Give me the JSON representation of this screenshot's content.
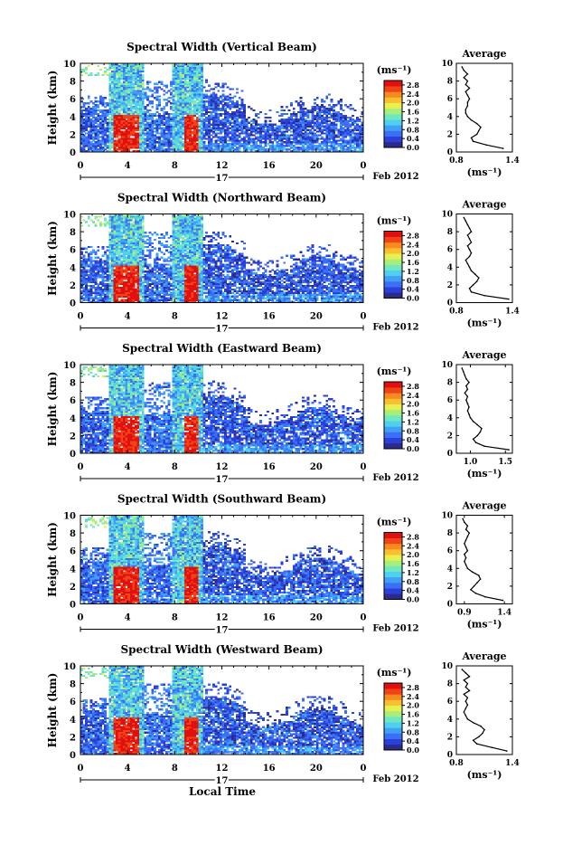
{
  "figure": {
    "date_label": "Feb 2012",
    "day_label": "17",
    "xlabel": "Local Time"
  },
  "colorbar": {
    "unit": "(ms⁻¹)",
    "ticks": [
      "0.0",
      "0.4",
      "0.8",
      "1.2",
      "1.6",
      "2.0",
      "2.4",
      "2.8"
    ],
    "range": [
      0.0,
      3.0
    ],
    "colors": [
      "#2b2b8c",
      "#2b3fd9",
      "#3b6ff5",
      "#3fa0f5",
      "#4fd0f0",
      "#6fe8c0",
      "#a8ee7a",
      "#e8f050",
      "#f8c030",
      "#f88a20",
      "#f04418",
      "#e01010"
    ]
  },
  "chart_data": [
    {
      "type": "heatmap",
      "title": "Spectral Width (Vertical Beam)",
      "ylabel": "Height (km)",
      "xticks": [
        "0",
        "4",
        "8",
        "12",
        "16",
        "20",
        "0"
      ],
      "xlim": [
        0,
        24
      ],
      "yticks": [
        "0",
        "2",
        "4",
        "6",
        "8",
        "10"
      ],
      "ylim": [
        0,
        10
      ],
      "profile": {
        "title": "Average",
        "xlabel": "(ms⁻¹)",
        "xticks": [
          "0.8",
          "1.4"
        ],
        "xlim": [
          0.8,
          1.4
        ],
        "yticks": [
          "0",
          "2",
          "4",
          "6",
          "8",
          "10"
        ],
        "height_km": [
          0.4,
          0.8,
          1.2,
          1.6,
          2.0,
          2.4,
          2.8,
          3.2,
          3.6,
          4.0,
          4.4,
          4.8,
          5.2,
          5.6,
          6.0,
          6.4,
          6.8,
          7.2,
          7.6,
          8.0,
          8.4,
          8.8,
          9.2,
          9.6
        ],
        "value": [
          1.3,
          1.12,
          0.98,
          0.96,
          1.02,
          1.04,
          1.06,
          1.02,
          0.96,
          0.92,
          0.9,
          0.9,
          0.92,
          0.92,
          0.94,
          0.92,
          0.9,
          0.94,
          0.9,
          0.92,
          0.88,
          0.92,
          0.88,
          0.86
        ]
      }
    },
    {
      "type": "heatmap",
      "title": "Spectral Width (Northward Beam)",
      "ylabel": "Height (km)",
      "xticks": [
        "0",
        "4",
        "8",
        "12",
        "16",
        "20",
        "0"
      ],
      "xlim": [
        0,
        24
      ],
      "yticks": [
        "0",
        "2",
        "4",
        "6",
        "8",
        "10"
      ],
      "ylim": [
        0,
        10
      ],
      "profile": {
        "title": "Average",
        "xlabel": "(ms⁻¹)",
        "xticks": [
          "0.8",
          "1.4"
        ],
        "xlim": [
          0.8,
          1.4
        ],
        "yticks": [
          "0",
          "2",
          "4",
          "6",
          "8",
          "10"
        ],
        "height_km": [
          0.4,
          0.8,
          1.2,
          1.6,
          2.0,
          2.4,
          2.8,
          3.2,
          3.6,
          4.0,
          4.4,
          4.8,
          5.2,
          5.6,
          6.0,
          6.4,
          6.8,
          7.2,
          7.6,
          8.0,
          8.4,
          8.8,
          9.2,
          9.6
        ],
        "value": [
          1.36,
          1.1,
          0.96,
          0.94,
          0.98,
          1.02,
          1.04,
          1.0,
          0.96,
          0.94,
          0.92,
          0.9,
          0.94,
          0.96,
          0.94,
          0.92,
          0.96,
          0.94,
          0.92,
          0.96,
          0.94,
          0.92,
          0.9,
          0.88
        ]
      }
    },
    {
      "type": "heatmap",
      "title": "Spectral Width (Eastward Beam)",
      "ylabel": "Height (km)",
      "xticks": [
        "0",
        "4",
        "8",
        "12",
        "16",
        "20",
        "0"
      ],
      "xlim": [
        0,
        24
      ],
      "yticks": [
        "0",
        "2",
        "4",
        "6",
        "8",
        "10"
      ],
      "ylim": [
        0,
        10
      ],
      "profile": {
        "title": "Average",
        "xlabel": "(ms⁻¹)",
        "xticks": [
          "1.0",
          "1.5"
        ],
        "xlim": [
          0.8,
          1.6
        ],
        "yticks": [
          "0",
          "2",
          "4",
          "6",
          "8",
          "10"
        ],
        "height_km": [
          0.4,
          0.8,
          1.2,
          1.6,
          2.0,
          2.4,
          2.8,
          3.2,
          3.6,
          4.0,
          4.4,
          4.8,
          5.2,
          5.6,
          6.0,
          6.4,
          6.8,
          7.2,
          7.6,
          8.0,
          8.4,
          8.8,
          9.2,
          9.6
        ],
        "value": [
          1.55,
          1.2,
          1.08,
          1.04,
          1.1,
          1.14,
          1.16,
          1.1,
          1.04,
          1.0,
          0.98,
          0.96,
          0.98,
          0.96,
          0.94,
          0.96,
          0.92,
          0.96,
          0.94,
          0.98,
          0.94,
          0.92,
          0.9,
          0.88
        ]
      }
    },
    {
      "type": "heatmap",
      "title": "Spectral Width (Southward Beam)",
      "ylabel": "Height (km)",
      "xticks": [
        "0",
        "4",
        "8",
        "12",
        "16",
        "20",
        "0"
      ],
      "xlim": [
        0,
        24
      ],
      "yticks": [
        "0",
        "2",
        "4",
        "6",
        "8",
        "10"
      ],
      "ylim": [
        0,
        10
      ],
      "profile": {
        "title": "Average",
        "xlabel": "(ms⁻¹)",
        "xticks": [
          "0.9",
          "1.4"
        ],
        "xlim": [
          0.8,
          1.5
        ],
        "yticks": [
          "0",
          "2",
          "4",
          "6",
          "8",
          "10"
        ],
        "height_km": [
          0.4,
          0.8,
          1.2,
          1.6,
          2.0,
          2.4,
          2.8,
          3.2,
          3.6,
          4.0,
          4.4,
          4.8,
          5.2,
          5.6,
          6.0,
          6.4,
          6.8,
          7.2,
          7.6,
          8.0,
          8.4,
          8.8,
          9.2,
          9.6
        ],
        "value": [
          1.38,
          1.16,
          1.04,
          0.98,
          1.02,
          1.06,
          1.1,
          1.08,
          1.0,
          0.94,
          0.92,
          0.9,
          0.92,
          0.9,
          0.94,
          0.92,
          0.9,
          0.92,
          0.94,
          0.96,
          0.92,
          0.94,
          0.9,
          0.88
        ]
      }
    },
    {
      "type": "heatmap",
      "title": "Spectral Width (Westward Beam)",
      "ylabel": "Height (km)",
      "xticks": [
        "0",
        "4",
        "8",
        "12",
        "16",
        "20",
        "0"
      ],
      "xlim": [
        0,
        24
      ],
      "yticks": [
        "0",
        "2",
        "4",
        "6",
        "8",
        "10"
      ],
      "ylim": [
        0,
        10
      ],
      "profile": {
        "title": "Average",
        "xlabel": "(ms⁻¹)",
        "xticks": [
          "0.8",
          "1.4"
        ],
        "xlim": [
          0.8,
          1.4
        ],
        "yticks": [
          "0",
          "2",
          "4",
          "6",
          "8",
          "10"
        ],
        "height_km": [
          0.4,
          0.8,
          1.2,
          1.6,
          2.0,
          2.4,
          2.8,
          3.2,
          3.6,
          4.0,
          4.4,
          4.8,
          5.2,
          5.6,
          6.0,
          6.4,
          6.8,
          7.2,
          7.6,
          8.0,
          8.4,
          8.8,
          9.2,
          9.6
        ],
        "value": [
          1.34,
          1.18,
          1.02,
          0.98,
          1.04,
          1.08,
          1.1,
          1.06,
          0.98,
          0.92,
          0.9,
          0.88,
          0.9,
          0.92,
          0.9,
          0.92,
          0.88,
          0.94,
          0.9,
          0.92,
          0.88,
          0.94,
          0.9,
          0.86
        ]
      }
    }
  ]
}
